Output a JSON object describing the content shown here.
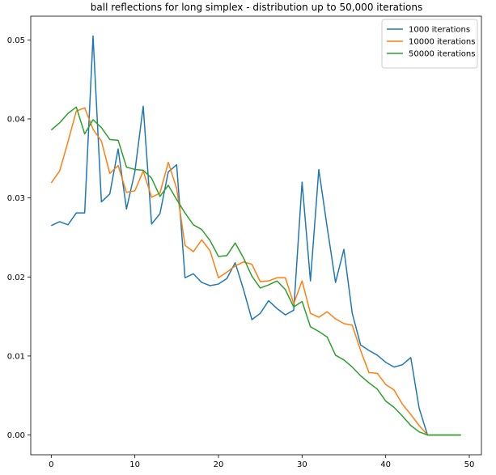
{
  "chart_data": {
    "type": "line",
    "title": "ball reflections for long simplex - distribution up to 50,000 iterations",
    "xlabel": "",
    "ylabel": "",
    "xlim": [
      -2.45,
      51.45
    ],
    "ylim": [
      -0.0025,
      0.053
    ],
    "xticks": [
      0,
      10,
      20,
      30,
      40,
      50
    ],
    "xtick_labels": [
      "0",
      "10",
      "20",
      "30",
      "40",
      "50"
    ],
    "yticks": [
      0.0,
      0.01,
      0.02,
      0.03,
      0.04,
      0.05
    ],
    "ytick_labels": [
      "0.00",
      "0.01",
      "0.02",
      "0.03",
      "0.04",
      "0.05"
    ],
    "grid": false,
    "legend_position": "top-right",
    "x": [
      0,
      1,
      2,
      3,
      4,
      5,
      6,
      7,
      8,
      9,
      10,
      11,
      12,
      13,
      14,
      15,
      16,
      17,
      18,
      19,
      20,
      21,
      22,
      23,
      24,
      25,
      26,
      27,
      28,
      29,
      30,
      31,
      32,
      33,
      34,
      35,
      36,
      37,
      38,
      39,
      40,
      41,
      42,
      43,
      44,
      45,
      46,
      47,
      48,
      49
    ],
    "series": [
      {
        "name": "1000 iterations",
        "color": "#1f77b4",
        "values": [
          0.0265,
          0.027,
          0.0266,
          0.0281,
          0.0281,
          0.0505,
          0.0295,
          0.0305,
          0.0362,
          0.0286,
          0.0333,
          0.0416,
          0.0267,
          0.028,
          0.0333,
          0.0342,
          0.0199,
          0.0204,
          0.0193,
          0.0189,
          0.0191,
          0.0198,
          0.0218,
          0.0184,
          0.0146,
          0.0154,
          0.017,
          0.016,
          0.0152,
          0.0158,
          0.032,
          0.0195,
          0.0336,
          0.0263,
          0.0193,
          0.0235,
          0.0154,
          0.0114,
          0.0107,
          0.0101,
          0.0092,
          0.0086,
          0.0089,
          0.0098,
          0.0034,
          0.0,
          0.0,
          0.0,
          0.0,
          0.0
        ]
      },
      {
        "name": "10000 iterations",
        "color": "#ff7f0e",
        "values": [
          0.0319,
          0.0334,
          0.0371,
          0.041,
          0.0414,
          0.0387,
          0.0372,
          0.0331,
          0.0341,
          0.0307,
          0.0309,
          0.0334,
          0.0301,
          0.0306,
          0.0345,
          0.0312,
          0.024,
          0.0232,
          0.0247,
          0.0233,
          0.0199,
          0.0206,
          0.0214,
          0.0219,
          0.0216,
          0.0194,
          0.0195,
          0.0199,
          0.0199,
          0.0166,
          0.0195,
          0.0154,
          0.0149,
          0.0156,
          0.0147,
          0.0141,
          0.0139,
          0.0107,
          0.0079,
          0.0078,
          0.0064,
          0.0057,
          0.0039,
          0.0026,
          0.0012,
          0.0,
          0.0,
          0.0,
          0.0,
          0.0
        ]
      },
      {
        "name": "50000 iterations",
        "color": "#2ca02c",
        "values": [
          0.0386,
          0.0395,
          0.0407,
          0.0415,
          0.0381,
          0.0399,
          0.0389,
          0.0374,
          0.0373,
          0.0339,
          0.0336,
          0.0335,
          0.0325,
          0.0302,
          0.0316,
          0.0298,
          0.0281,
          0.0266,
          0.026,
          0.0246,
          0.0226,
          0.0227,
          0.0243,
          0.0224,
          0.0201,
          0.0186,
          0.019,
          0.0195,
          0.0184,
          0.0162,
          0.0169,
          0.0137,
          0.0131,
          0.0124,
          0.0101,
          0.0095,
          0.0086,
          0.0075,
          0.0066,
          0.0058,
          0.0043,
          0.0035,
          0.0024,
          0.0012,
          0.0004,
          0.0,
          0.0,
          0.0,
          0.0,
          0.0
        ]
      }
    ]
  }
}
